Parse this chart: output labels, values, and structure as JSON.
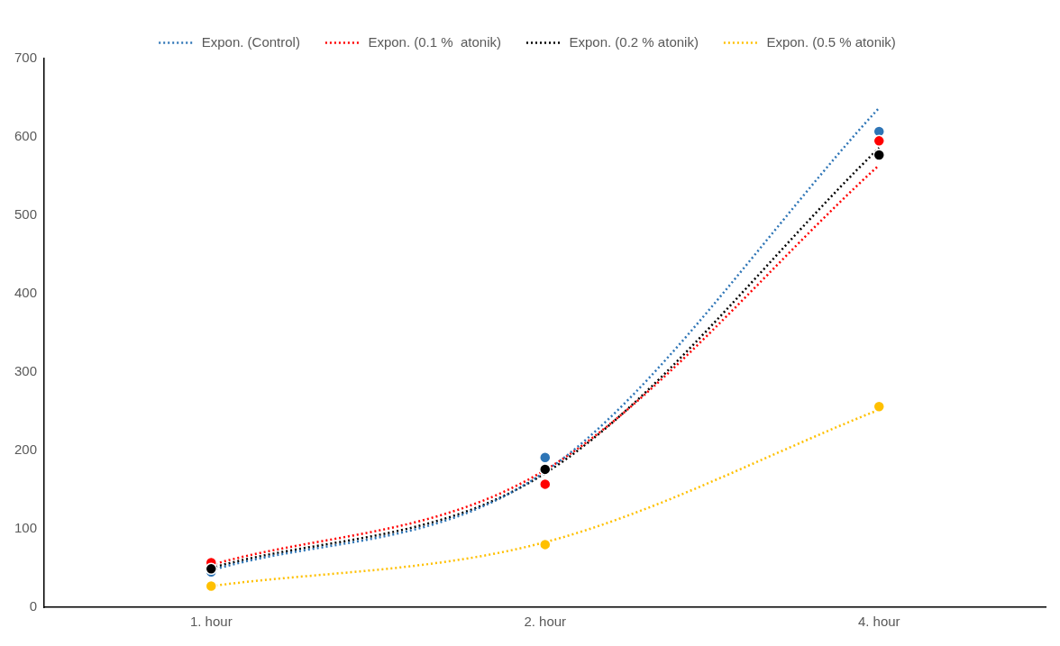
{
  "chart_data": {
    "type": "scatter",
    "categories": [
      "1. hour",
      "2. hour",
      "4. hour"
    ],
    "ylim": [
      0,
      700
    ],
    "yticks": [
      0,
      100,
      200,
      300,
      400,
      500,
      600,
      700
    ],
    "grid": false,
    "legend": "top",
    "marker": "circle",
    "series": [
      {
        "color": "#2e75b6",
        "values": [
          45,
          191,
          607
        ]
      },
      {
        "color": "#ff0000",
        "values": [
          57,
          157,
          595
        ]
      },
      {
        "color": "#000000",
        "values": [
          49,
          176,
          577
        ]
      },
      {
        "color": "#ffc000",
        "values": [
          27,
          80,
          256
        ]
      },
      {
        "type": "line",
        "name": "Expon. (Control)",
        "color": "#2e75b6",
        "line_style": "dotted",
        "marker": "none",
        "values": [
          47,
          173,
          637
        ]
      },
      {
        "type": "line",
        "name": "Expon. (0.1 %  atonik)",
        "color": "#ff0000",
        "line_style": "dotted",
        "marker": "none",
        "values": [
          54,
          175,
          564
        ]
      },
      {
        "type": "line",
        "name": "Expon. (0.2 % atonik)",
        "color": "#000000",
        "line_style": "dotted",
        "marker": "none",
        "values": [
          50,
          171,
          586
        ]
      },
      {
        "type": "line",
        "name": "Expon. (0.5 % atonik)",
        "color": "#ffc000",
        "line_style": "dotted",
        "marker": "none",
        "values": [
          27,
          83,
          252
        ]
      }
    ]
  }
}
